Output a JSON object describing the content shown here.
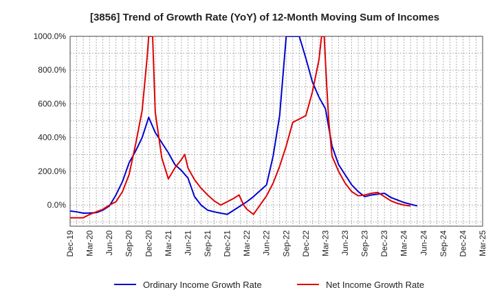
{
  "chart_data": {
    "type": "line",
    "title": "[3856]  Trend of Growth Rate (YoY) of 12-Month Moving Sum of Incomes",
    "xlabel": "",
    "ylabel": "",
    "ylim": [
      -125,
      1000
    ],
    "y_ticks": [
      0,
      200,
      400,
      600,
      800,
      1000
    ],
    "y_tick_labels": [
      "0.0%",
      "200.0%",
      "400.0%",
      "600.0%",
      "800.0%",
      "1000.0%"
    ],
    "x_tick_labels": [
      "Dec-19",
      "Mar-20",
      "Jun-20",
      "Sep-20",
      "Dec-20",
      "Mar-21",
      "Jun-21",
      "Sep-21",
      "Dec-21",
      "Mar-22",
      "Jun-22",
      "Sep-22",
      "Dec-22",
      "Mar-23",
      "Jun-23",
      "Sep-23",
      "Dec-23",
      "Mar-24",
      "Jun-24",
      "Sep-24",
      "Dec-24",
      "Mar-25"
    ],
    "grid": true,
    "legend_position": "bottom",
    "series": [
      {
        "name": "Ordinary Income Growth Rate",
        "color": "#0000cc",
        "points": [
          [
            0,
            -35
          ],
          [
            1,
            -40
          ],
          [
            2,
            -48
          ],
          [
            3,
            -47
          ],
          [
            4,
            -45
          ],
          [
            5,
            -30
          ],
          [
            6,
            -5
          ],
          [
            7,
            60
          ],
          [
            8,
            140
          ],
          [
            9,
            250
          ],
          [
            10,
            320
          ],
          [
            11,
            400
          ],
          [
            12,
            520
          ],
          [
            13,
            430
          ],
          [
            14,
            370
          ],
          [
            15,
            310
          ],
          [
            16,
            240
          ],
          [
            17,
            205
          ],
          [
            18,
            160
          ],
          [
            19,
            50
          ],
          [
            20,
            0
          ],
          [
            21,
            -30
          ],
          [
            22,
            -40
          ],
          [
            23,
            -48
          ],
          [
            24,
            -55
          ],
          [
            25,
            -30
          ],
          [
            26,
            -5
          ],
          [
            27,
            20
          ],
          [
            28,
            50
          ],
          [
            29,
            85
          ],
          [
            30,
            120
          ],
          [
            31,
            290
          ],
          [
            32,
            530
          ],
          [
            33,
            1000
          ],
          [
            35,
            1000
          ],
          [
            36,
            870
          ],
          [
            37,
            730
          ],
          [
            38,
            640
          ],
          [
            39,
            570
          ],
          [
            40,
            350
          ],
          [
            41,
            240
          ],
          [
            42,
            180
          ],
          [
            43,
            120
          ],
          [
            44,
            80
          ],
          [
            45,
            50
          ],
          [
            46,
            60
          ],
          [
            47,
            65
          ],
          [
            48,
            70
          ],
          [
            49,
            45
          ],
          [
            50,
            30
          ],
          [
            51,
            15
          ],
          [
            52,
            5
          ],
          [
            53,
            -5
          ]
        ]
      },
      {
        "name": "Net Income Growth Rate",
        "color": "#dd0000",
        "points": [
          [
            0,
            -75
          ],
          [
            1,
            -75
          ],
          [
            2,
            -75
          ],
          [
            3,
            -55
          ],
          [
            4,
            -40
          ],
          [
            5,
            -25
          ],
          [
            6,
            0
          ],
          [
            7,
            20
          ],
          [
            8,
            80
          ],
          [
            9,
            180
          ],
          [
            10,
            360
          ],
          [
            11,
            560
          ],
          [
            11.75,
            870
          ],
          [
            12,
            1000
          ],
          [
            12.6,
            1000
          ],
          [
            13,
            550
          ],
          [
            14,
            280
          ],
          [
            15,
            155
          ],
          [
            16,
            220
          ],
          [
            17,
            270
          ],
          [
            17.5,
            300
          ],
          [
            18,
            220
          ],
          [
            19,
            150
          ],
          [
            20,
            100
          ],
          [
            21,
            60
          ],
          [
            22,
            25
          ],
          [
            23,
            0
          ],
          [
            24,
            20
          ],
          [
            25,
            40
          ],
          [
            25.8,
            60
          ],
          [
            26.5,
            0
          ],
          [
            27,
            -25
          ],
          [
            28,
            -55
          ],
          [
            29,
            0
          ],
          [
            30,
            55
          ],
          [
            31,
            130
          ],
          [
            32,
            230
          ],
          [
            33,
            350
          ],
          [
            34,
            490
          ],
          [
            35,
            510
          ],
          [
            36,
            530
          ],
          [
            37,
            670
          ],
          [
            38,
            860
          ],
          [
            38.4,
            1000
          ],
          [
            38.8,
            1000
          ],
          [
            39.2,
            700
          ],
          [
            39.5,
            500
          ],
          [
            40,
            290
          ],
          [
            41,
            200
          ],
          [
            42,
            130
          ],
          [
            43,
            80
          ],
          [
            44,
            55
          ],
          [
            45,
            60
          ],
          [
            46,
            70
          ],
          [
            47,
            75
          ],
          [
            48,
            50
          ],
          [
            49,
            25
          ],
          [
            50,
            10
          ],
          [
            51,
            0
          ],
          [
            52,
            -5
          ]
        ]
      }
    ]
  }
}
